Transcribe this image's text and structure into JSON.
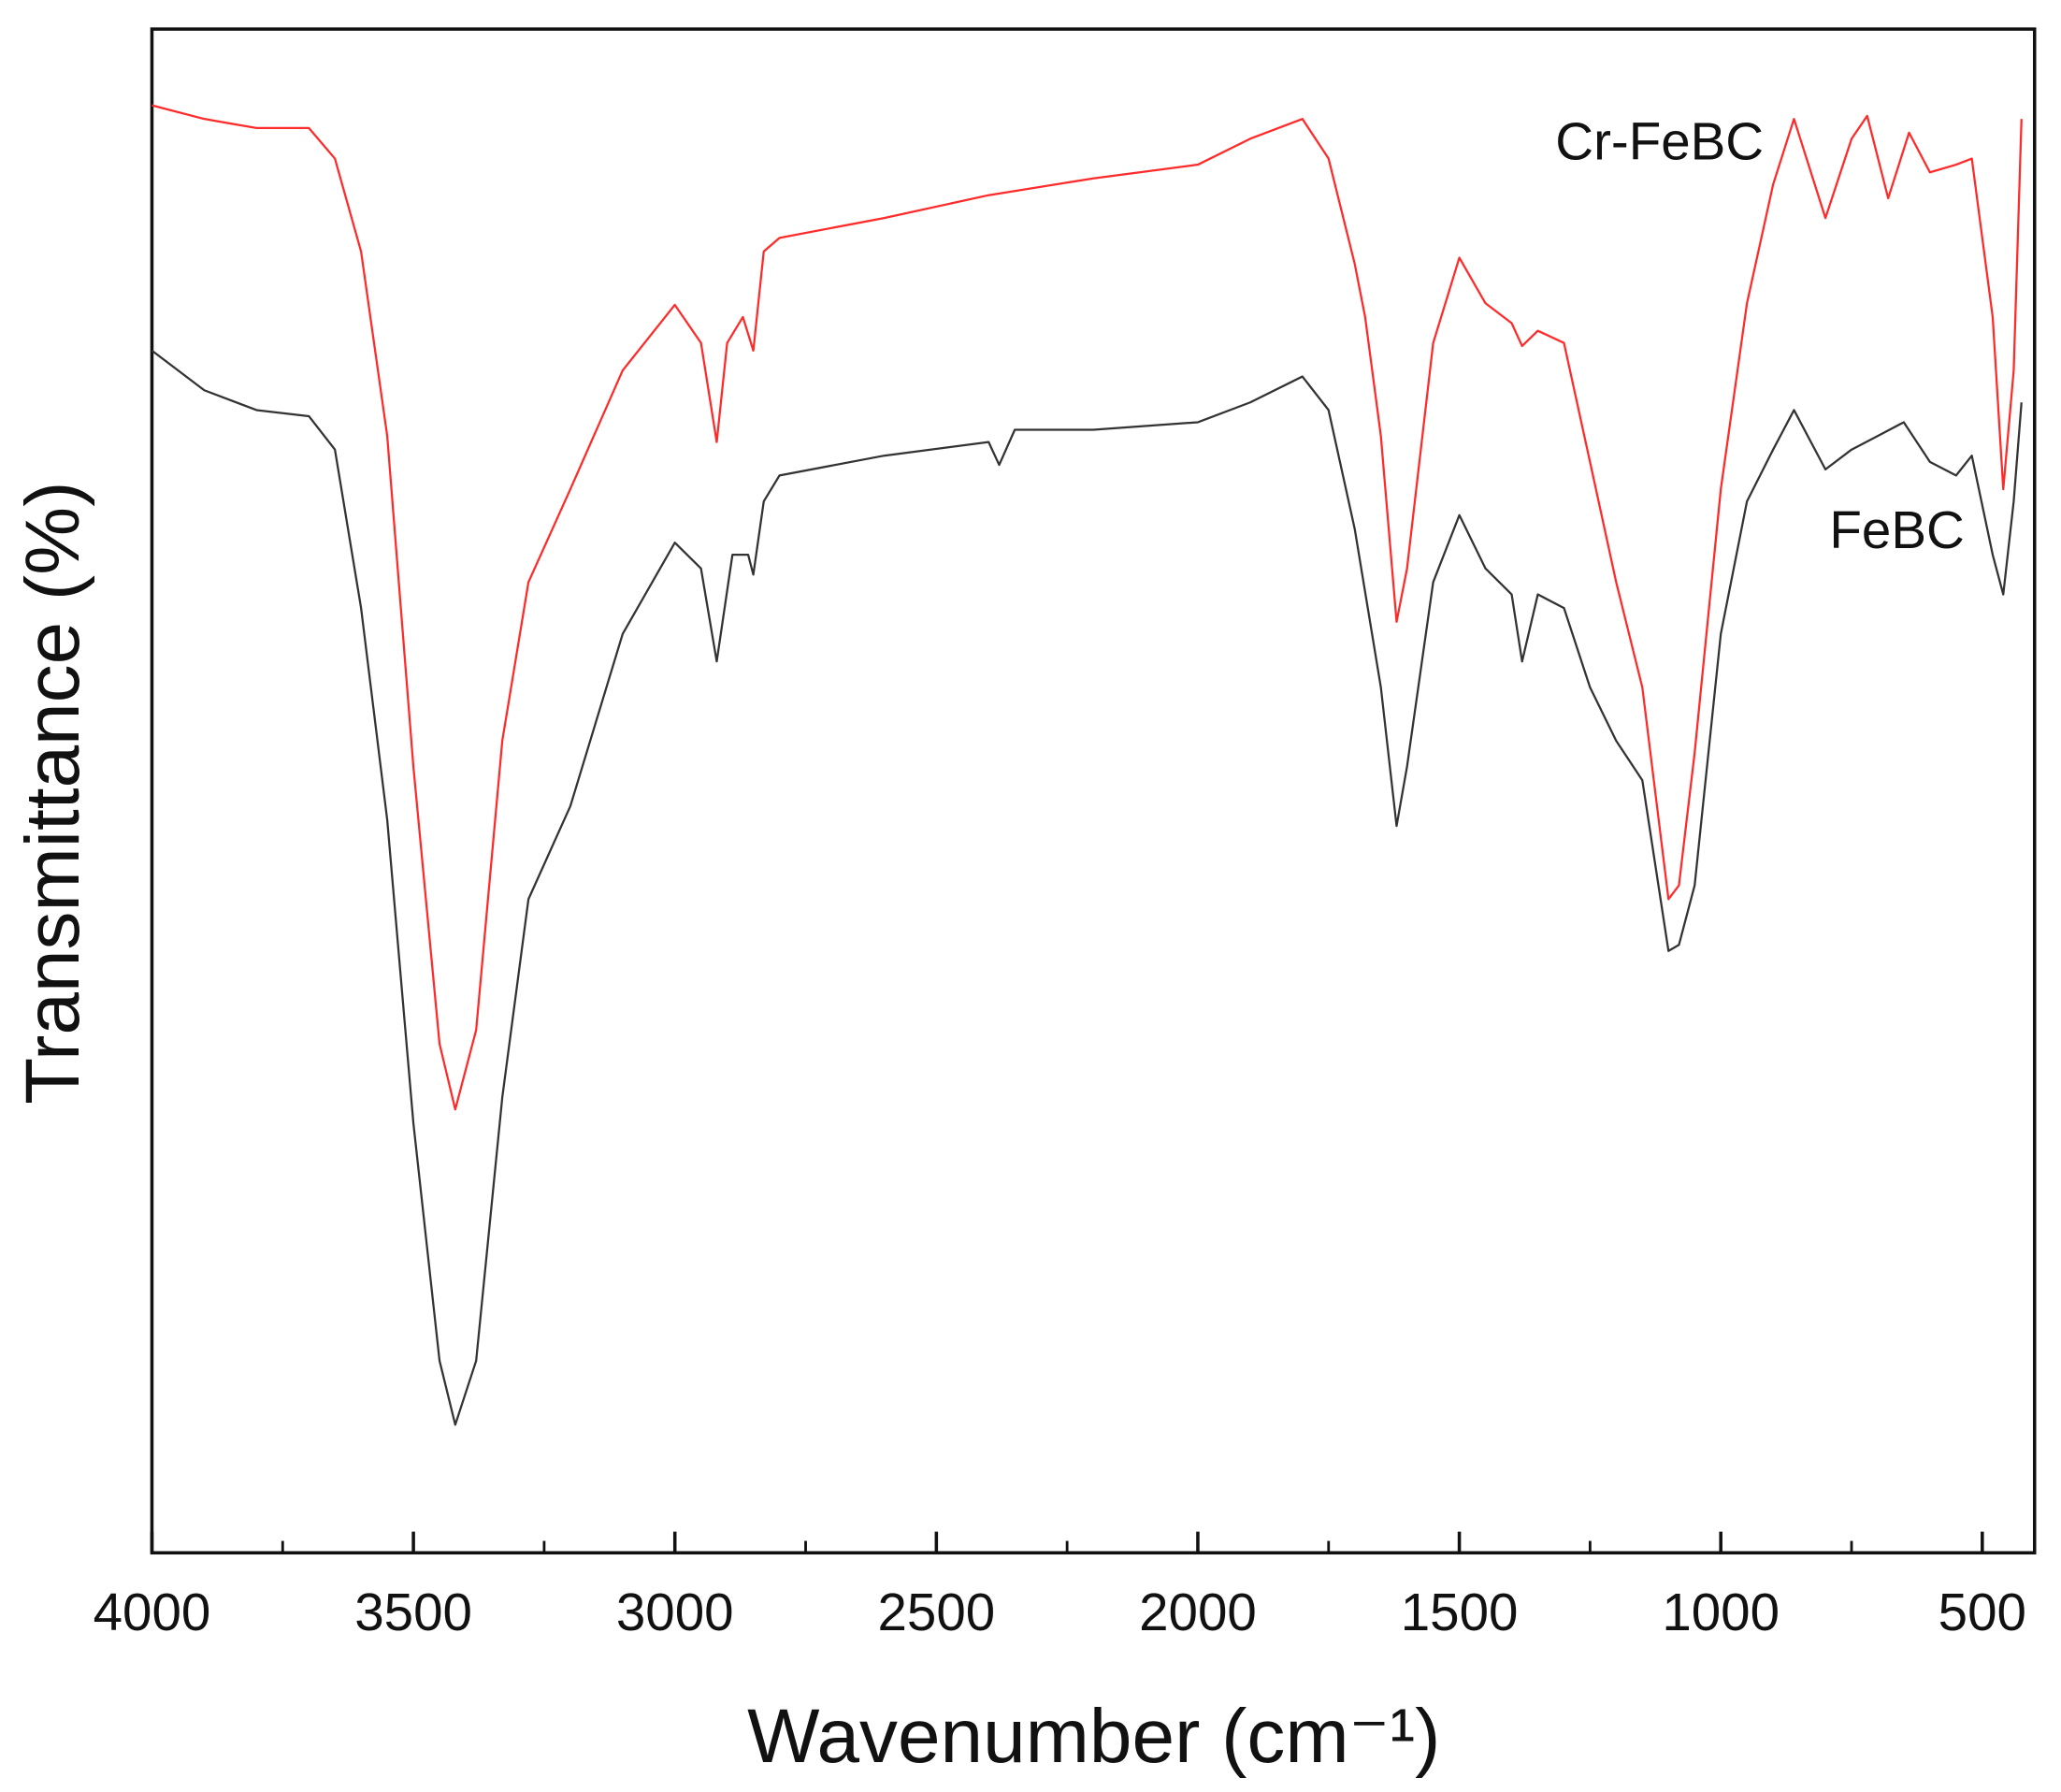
{
  "chart_data": {
    "type": "line",
    "xlabel": "Wavenumber (cm⁻¹)",
    "ylabel": "Transmittance (%)",
    "xlim": [
      4000,
      400
    ],
    "xticks": [
      4000,
      3500,
      3000,
      2500,
      2000,
      1500,
      1000,
      500
    ],
    "x_minor_ticks": [
      3750,
      3250,
      2750,
      2250,
      1750,
      1250,
      750
    ],
    "ylim": [
      0,
      100
    ],
    "series": [
      {
        "name": "Cr-FeBC",
        "color": "#ff2a2a",
        "x": [
          4000,
          3900,
          3800,
          3700,
          3650,
          3600,
          3550,
          3500,
          3450,
          3420,
          3380,
          3330,
          3280,
          3200,
          3100,
          3000,
          2950,
          2920,
          2900,
          2870,
          2850,
          2830,
          2800,
          2600,
          2400,
          2200,
          2000,
          1900,
          1800,
          1750,
          1700,
          1680,
          1650,
          1620,
          1600,
          1550,
          1500,
          1450,
          1400,
          1380,
          1350,
          1300,
          1250,
          1200,
          1150,
          1100,
          1080,
          1050,
          1000,
          950,
          900,
          860,
          800,
          750,
          720,
          680,
          640,
          600,
          550,
          520,
          480,
          460,
          440,
          425
        ],
        "values": [
          95.0,
          94.1,
          93.5,
          93.5,
          91.5,
          85.4,
          73.3,
          51.6,
          33.4,
          29.1,
          34.3,
          53.3,
          63.7,
          69.8,
          77.6,
          81.9,
          79.4,
          72.9,
          79.4,
          81.1,
          78.9,
          85.4,
          86.3,
          87.6,
          89.1,
          90.2,
          91.1,
          92.8,
          94.1,
          91.5,
          84.6,
          81.1,
          73.3,
          61.1,
          64.6,
          79.4,
          85.0,
          82.0,
          80.7,
          79.2,
          80.2,
          79.4,
          71.6,
          63.7,
          56.8,
          42.9,
          43.8,
          52.5,
          69.8,
          82.0,
          89.8,
          94.1,
          87.6,
          92.8,
          94.3,
          88.9,
          93.2,
          90.6,
          91.1,
          91.5,
          81.1,
          69.8,
          77.6,
          94.1
        ]
      },
      {
        "name": "FeBC",
        "color": "#333333",
        "x": [
          4000,
          3900,
          3800,
          3700,
          3650,
          3600,
          3550,
          3500,
          3450,
          3420,
          3380,
          3330,
          3280,
          3200,
          3100,
          3000,
          2950,
          2920,
          2890,
          2860,
          2850,
          2830,
          2800,
          2600,
          2400,
          2380,
          2350,
          2200,
          2000,
          1900,
          1800,
          1750,
          1700,
          1650,
          1620,
          1600,
          1550,
          1500,
          1450,
          1400,
          1380,
          1350,
          1300,
          1250,
          1200,
          1150,
          1100,
          1080,
          1050,
          1000,
          950,
          900,
          860,
          800,
          750,
          700,
          650,
          600,
          550,
          520,
          480,
          460,
          440,
          425
        ],
        "values": [
          78.9,
          76.3,
          75.0,
          74.6,
          72.4,
          62.0,
          48.1,
          28.2,
          12.6,
          8.4,
          12.6,
          29.9,
          42.9,
          49.0,
          60.3,
          66.3,
          64.6,
          58.5,
          65.5,
          65.5,
          64.2,
          69.0,
          70.7,
          72.0,
          72.9,
          71.4,
          73.7,
          73.7,
          74.2,
          75.5,
          77.2,
          75.0,
          67.2,
          56.8,
          47.7,
          51.6,
          63.7,
          68.1,
          64.6,
          62.9,
          58.5,
          62.9,
          62.0,
          56.8,
          53.3,
          50.7,
          39.5,
          39.9,
          43.8,
          60.3,
          69.0,
          72.4,
          75.0,
          71.1,
          72.4,
          73.3,
          74.2,
          71.6,
          70.7,
          72.0,
          65.5,
          62.9,
          69.0,
          75.5
        ]
      }
    ]
  }
}
